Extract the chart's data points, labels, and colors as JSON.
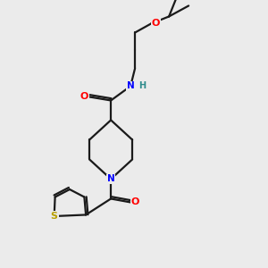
{
  "bg_color": "#ebebeb",
  "bond_color": "#1a1a1a",
  "atom_colors": {
    "O": "#ff0000",
    "N": "#0000ff",
    "S": "#b8a000",
    "H": "#2e8b8b",
    "C": "#1a1a1a"
  }
}
